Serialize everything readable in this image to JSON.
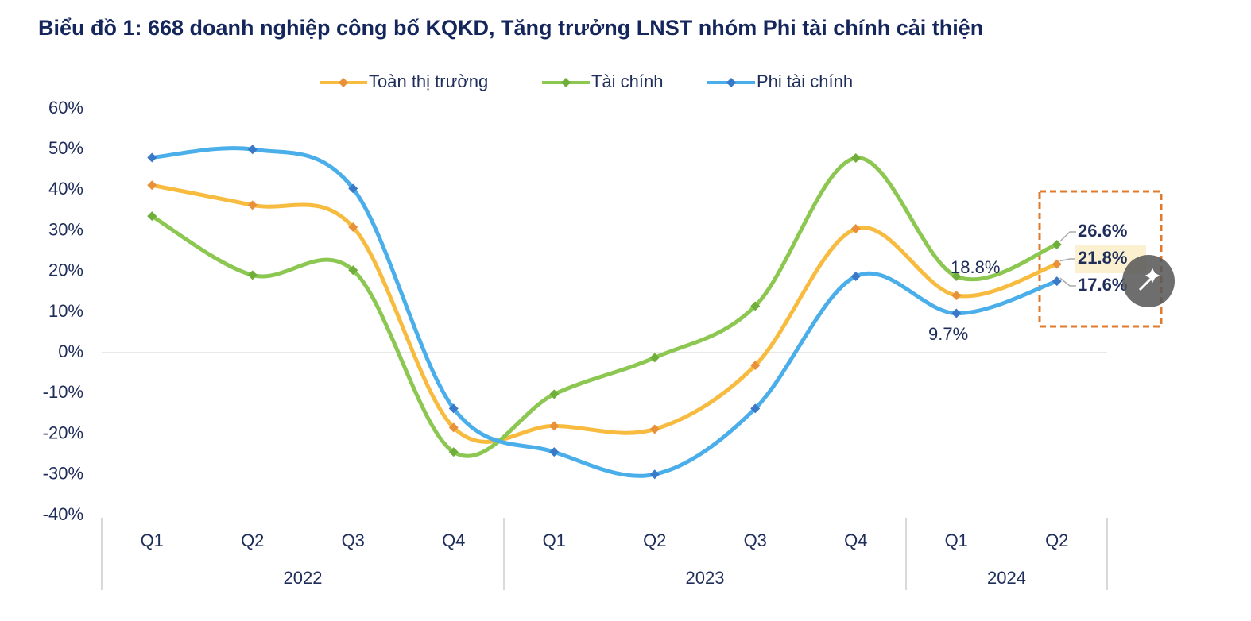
{
  "chart_data": {
    "type": "line",
    "title": "Biểu đồ 1: 668 doanh nghiệp công bố KQKD, Tăng trưởng LNST nhóm Phi tài chính cải thiện",
    "categories": [
      "Q1",
      "Q2",
      "Q3",
      "Q4",
      "Q1",
      "Q2",
      "Q3",
      "Q4",
      "Q1",
      "Q2"
    ],
    "category_groups": [
      {
        "label": "2022",
        "count": 4
      },
      {
        "label": "2023",
        "count": 4
      },
      {
        "label": "2024",
        "count": 2
      }
    ],
    "series": [
      {
        "name": "Toàn thị trường",
        "color": "#f7bb3f",
        "marker_color": "#e8913a",
        "values": [
          41.2,
          36.3,
          30.9,
          -18.4,
          -18.0,
          -18.8,
          -3.1,
          30.5,
          14.1,
          21.8
        ],
        "value_labels": [
          null,
          null,
          null,
          null,
          null,
          null,
          null,
          null,
          null,
          "21.8%"
        ]
      },
      {
        "name": "Tài chính",
        "color": "#8cc751",
        "marker_color": "#6fae3a",
        "values": [
          33.6,
          19.1,
          20.3,
          -24.4,
          -10.2,
          -1.2,
          11.5,
          47.9,
          18.8,
          26.6
        ],
        "value_labels": [
          null,
          null,
          null,
          null,
          null,
          null,
          null,
          null,
          "18.8%",
          "26.6%"
        ]
      },
      {
        "name": "Phi tài chính",
        "color": "#4aaeea",
        "marker_color": "#3a78c8",
        "values": [
          48.0,
          50.0,
          40.4,
          -13.7,
          -24.4,
          -29.9,
          -13.7,
          18.8,
          9.7,
          17.6
        ],
        "value_labels": [
          null,
          null,
          null,
          null,
          null,
          null,
          null,
          null,
          "9.7%",
          "17.6%"
        ]
      }
    ],
    "ylim": [
      -40,
      60
    ],
    "yticks": [
      {
        "value": -40,
        "label": "-40%"
      },
      {
        "value": -30,
        "label": "-30%"
      },
      {
        "value": -20,
        "label": "-20%"
      },
      {
        "value": -10,
        "label": "-10%"
      },
      {
        "value": 0,
        "label": "0%"
      },
      {
        "value": 10,
        "label": "10%"
      },
      {
        "value": 20,
        "label": "20%"
      },
      {
        "value": 30,
        "label": "30%"
      },
      {
        "value": 40,
        "label": "40%"
      },
      {
        "value": 50,
        "label": "50%"
      },
      {
        "value": 60,
        "label": "60%"
      }
    ],
    "legend": "top"
  }
}
